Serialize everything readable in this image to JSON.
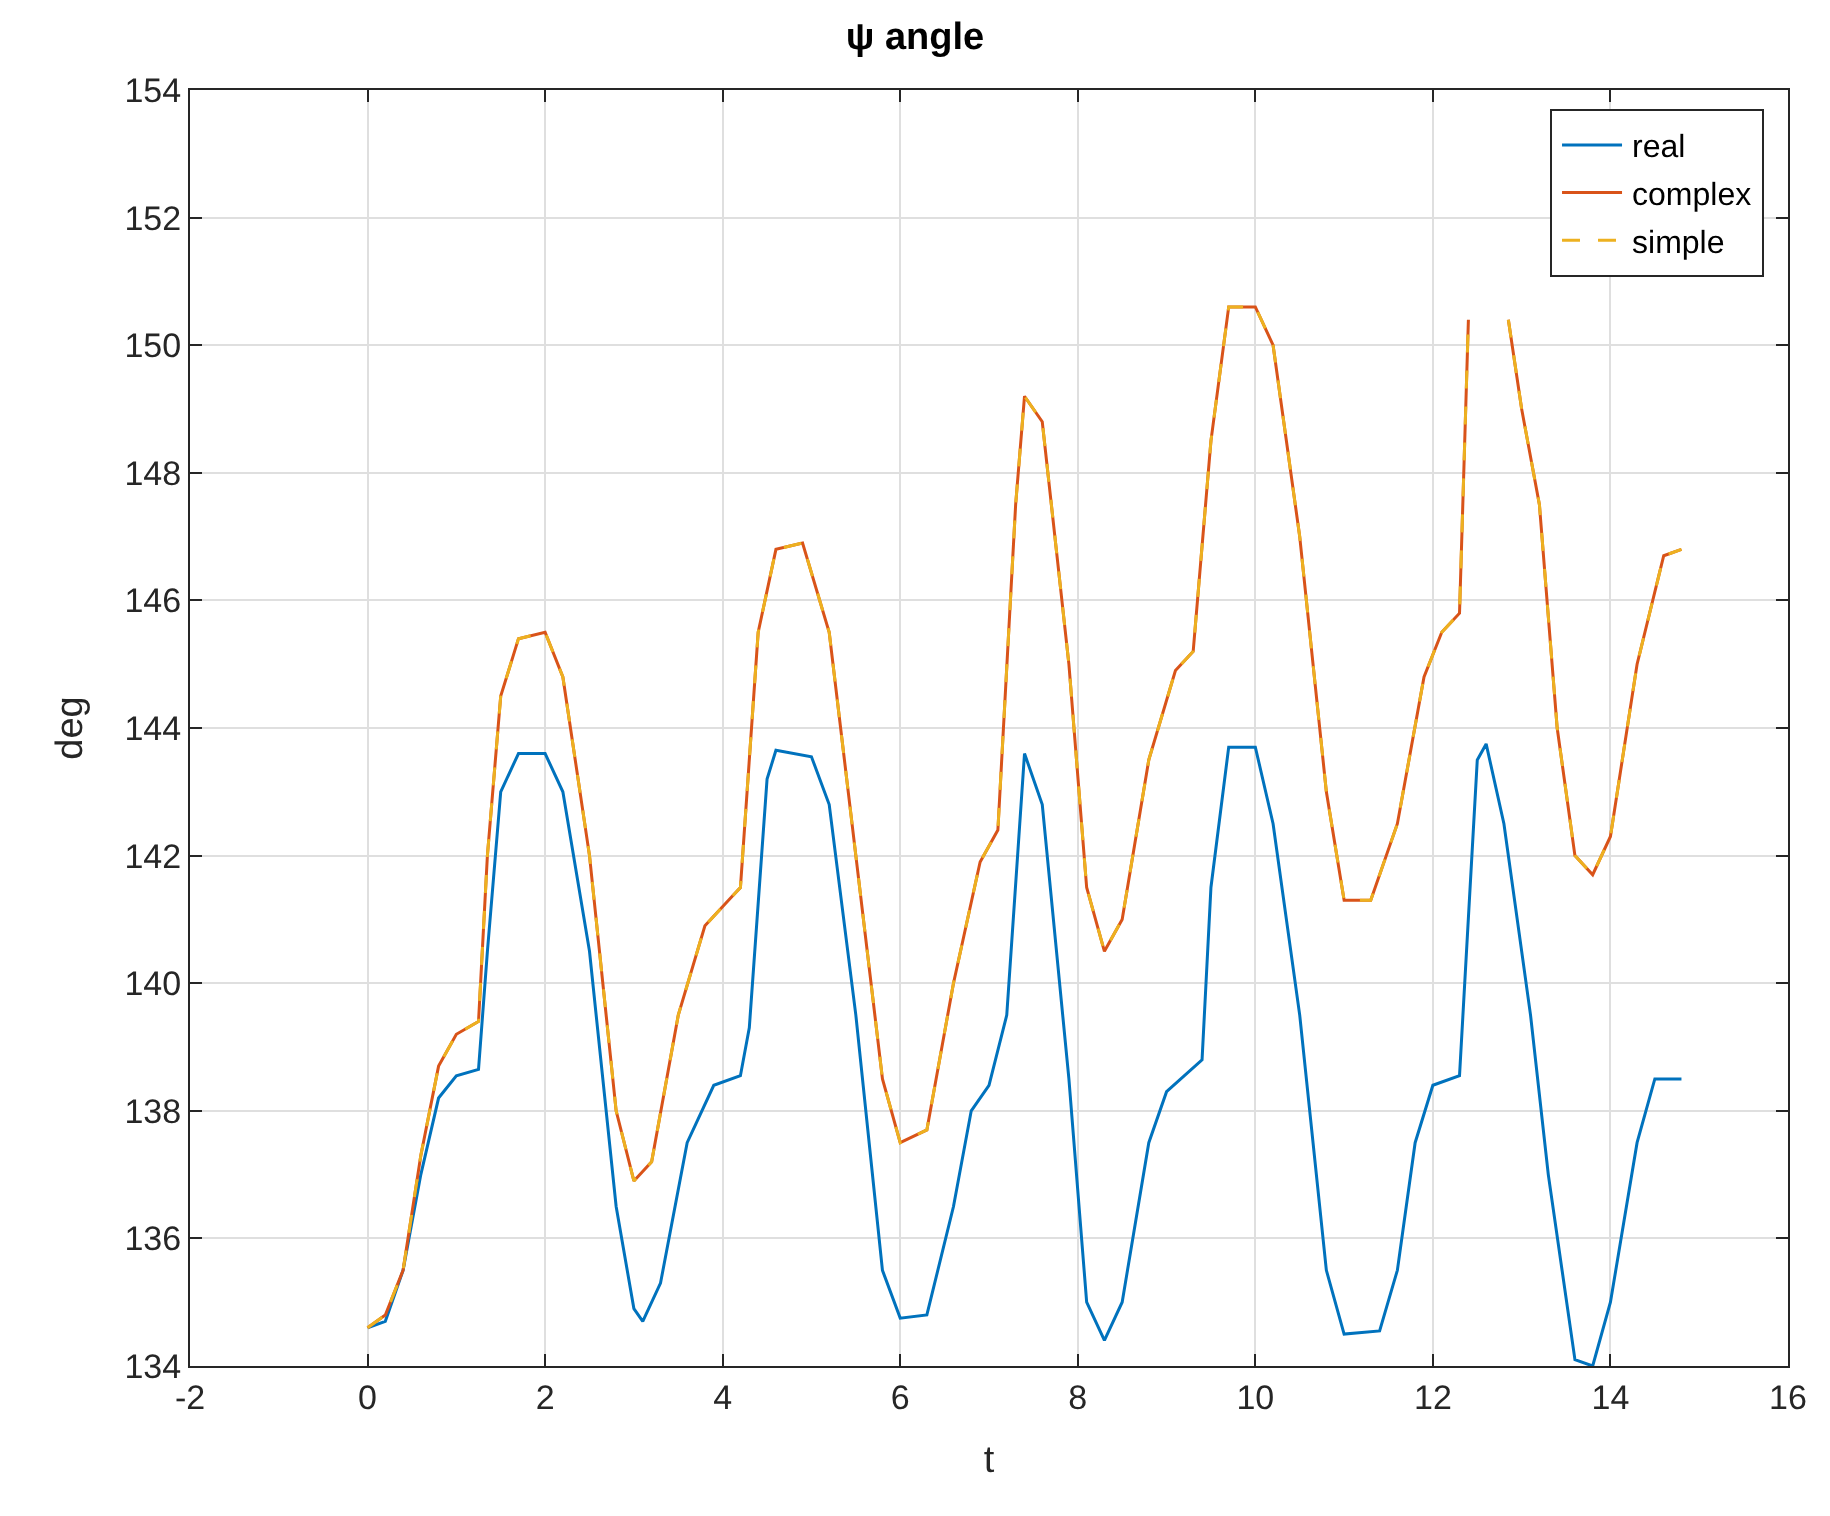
{
  "chart_data": {
    "type": "line",
    "title": "ψ angle",
    "xlabel": "t",
    "ylabel": "deg",
    "xlim": [
      -2,
      16
    ],
    "xticks": [
      -2,
      0,
      2,
      4,
      6,
      8,
      10,
      12,
      14,
      16
    ],
    "ylim": [
      134,
      154
    ],
    "yticks": [
      134,
      136,
      138,
      140,
      142,
      144,
      146,
      148,
      150,
      152,
      154
    ],
    "grid": true,
    "legend": "top right",
    "x": [
      0,
      0.2,
      0.4,
      0.6,
      0.8,
      1.0,
      1.25,
      1.35,
      1.5,
      1.7,
      2.0,
      2.2,
      2.5,
      2.8,
      3.0,
      3.1,
      3.3,
      3.6,
      3.9,
      4.2,
      4.3,
      4.5,
      4.6,
      5.0,
      5.2,
      5.5,
      5.8,
      6.0,
      6.3,
      6.6,
      6.8,
      7.0,
      7.2,
      7.4,
      7.6,
      7.9,
      8.1,
      8.3,
      8.5,
      8.8,
      9.0,
      9.4,
      9.5,
      9.7,
      10.0,
      10.2,
      10.5,
      10.8,
      11.0,
      11.4,
      11.6,
      11.8,
      12.0,
      12.3,
      12.5,
      12.6,
      12.8,
      13.1,
      13.3,
      13.6,
      13.8,
      14.0,
      14.3,
      14.5,
      14.8
    ],
    "series": [
      {
        "name": "real",
        "color": "#0072bd",
        "line_style": "solid",
        "values": [
          134.6,
          134.7,
          135.5,
          137.0,
          138.2,
          138.55,
          138.65,
          140.5,
          143.0,
          143.6,
          143.6,
          143.0,
          140.5,
          136.5,
          134.9,
          134.7,
          135.3,
          137.5,
          138.4,
          138.55,
          139.3,
          143.2,
          143.65,
          143.55,
          142.8,
          139.5,
          135.5,
          134.75,
          134.8,
          136.5,
          138.0,
          138.4,
          139.5,
          143.6,
          142.8,
          138.5,
          135.0,
          134.4,
          135.0,
          137.5,
          138.3,
          138.8,
          141.5,
          143.7,
          143.7,
          142.5,
          139.5,
          135.5,
          134.5,
          134.55,
          135.5,
          137.5,
          138.4,
          138.55,
          143.5,
          143.75,
          142.5,
          139.5,
          137.0,
          134.1,
          134.0,
          135.0,
          137.5,
          138.5,
          138.5
        ]
      },
      {
        "name": "complex",
        "color": "#d95319",
        "line_style": "solid",
        "x": [
          0,
          0.2,
          0.4,
          0.6,
          0.8,
          1.0,
          1.25,
          1.35,
          1.5,
          1.7,
          2.0,
          2.2,
          2.5,
          2.8,
          3.0,
          3.2,
          3.5,
          3.8,
          4.1,
          4.2,
          4.4,
          4.6,
          4.9,
          5.2,
          5.5,
          5.8,
          6.0,
          6.3,
          6.6,
          6.9,
          7.1,
          7.3,
          7.4,
          7.6,
          7.9,
          8.1,
          8.3,
          8.5,
          8.8,
          9.1,
          9.3,
          9.5,
          9.7,
          10.0,
          10.2,
          10.5,
          10.8,
          11.0,
          11.3,
          11.6,
          11.9,
          12.1,
          12.3,
          12.4,
          12.6,
          12.7,
          12.85,
          13.0,
          13.2,
          13.4,
          13.6,
          13.8,
          14.0,
          14.3,
          14.6,
          14.8
        ],
        "values": [
          134.6,
          134.8,
          135.5,
          137.3,
          138.7,
          139.2,
          139.4,
          142.0,
          144.5,
          145.4,
          145.5,
          144.8,
          142.0,
          138.0,
          136.9,
          137.2,
          139.5,
          140.9,
          141.35,
          141.5,
          145.5,
          146.8,
          146.9,
          145.5,
          142.0,
          138.5,
          137.5,
          137.7,
          140.0,
          141.9,
          142.4,
          147.5,
          149.2,
          148.8,
          145.0,
          141.5,
          140.5,
          141.0,
          143.5,
          144.9,
          145.2,
          148.5,
          150.6,
          150.6,
          150.0,
          147.0,
          143.0,
          141.3,
          141.3,
          142.5,
          144.8,
          145.5,
          145.8,
          150.4,
          null,
          null,
          150.4,
          149.0,
          147.5,
          144.0,
          142.0,
          141.7,
          142.3,
          145.0,
          146.7,
          146.8
        ]
      },
      {
        "name": "simple",
        "color": "#edb120",
        "line_style": "dashed",
        "x": [
          0,
          0.2,
          0.4,
          0.6,
          0.8,
          1.0,
          1.25,
          1.35,
          1.5,
          1.7,
          2.0,
          2.2,
          2.5,
          2.8,
          3.0,
          3.2,
          3.5,
          3.8,
          4.1,
          4.2,
          4.4,
          4.6,
          4.9,
          5.2,
          5.5,
          5.8,
          6.0,
          6.3,
          6.6,
          6.9,
          7.1,
          7.3,
          7.4,
          7.6,
          7.9,
          8.1,
          8.3,
          8.5,
          8.8,
          9.1,
          9.3,
          9.5,
          9.7,
          10.0,
          10.2,
          10.5,
          10.8,
          11.0,
          11.3,
          11.6,
          11.9,
          12.1,
          12.3,
          12.4,
          12.6,
          12.7,
          12.85,
          13.0,
          13.2,
          13.4,
          13.6,
          13.8,
          14.0,
          14.3,
          14.6,
          14.8
        ],
        "values": [
          134.6,
          134.8,
          135.5,
          137.3,
          138.7,
          139.2,
          139.4,
          142.0,
          144.5,
          145.4,
          145.5,
          144.8,
          142.0,
          138.0,
          136.9,
          137.2,
          139.5,
          140.9,
          141.35,
          141.5,
          145.5,
          146.8,
          146.9,
          145.5,
          142.0,
          138.5,
          137.5,
          137.7,
          140.0,
          141.9,
          142.4,
          147.5,
          149.2,
          148.8,
          145.0,
          141.5,
          140.5,
          141.0,
          143.5,
          144.9,
          145.2,
          148.5,
          150.6,
          150.6,
          150.0,
          147.0,
          143.0,
          141.3,
          141.3,
          142.5,
          144.8,
          145.5,
          145.8,
          150.4,
          null,
          null,
          150.4,
          149.0,
          147.5,
          144.0,
          142.0,
          141.7,
          142.3,
          145.0,
          146.7,
          146.8
        ]
      }
    ]
  }
}
